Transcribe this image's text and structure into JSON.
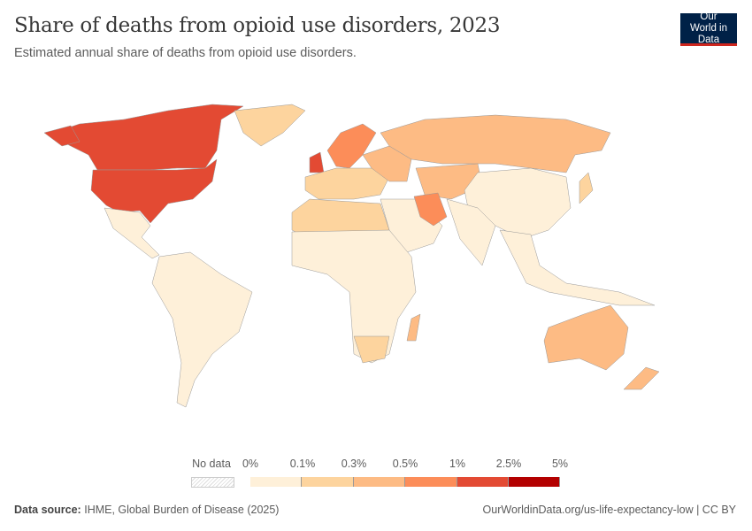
{
  "header": {
    "title": "Share of deaths from opioid use disorders, 2023",
    "subtitle": "Estimated annual share of deaths from opioid use disorders.",
    "logo": "Our World in Data"
  },
  "legend": {
    "no_data_label": "No data",
    "bins": [
      {
        "from": "0%",
        "to": "0.1%",
        "color": "#fef0d9"
      },
      {
        "from": "0.1%",
        "to": "0.3%",
        "color": "#fdd49e"
      },
      {
        "from": "0.3%",
        "to": "0.5%",
        "color": "#fdbb84"
      },
      {
        "from": "0.5%",
        "to": "1%",
        "color": "#fc8d59"
      },
      {
        "from": "1%",
        "to": "2.5%",
        "color": "#e34a33"
      },
      {
        "from": "2.5%",
        "to": "5%",
        "color": "#b30000"
      }
    ],
    "ticks": [
      "0%",
      "0.1%",
      "0.3%",
      "0.5%",
      "1%",
      "2.5%",
      "5%"
    ]
  },
  "footer": {
    "source_label": "Data source:",
    "source": "IHME, Global Burden of Disease (2025)",
    "url": "OurWorldinData.org/us-life-expectancy-low | CC BY"
  }
}
